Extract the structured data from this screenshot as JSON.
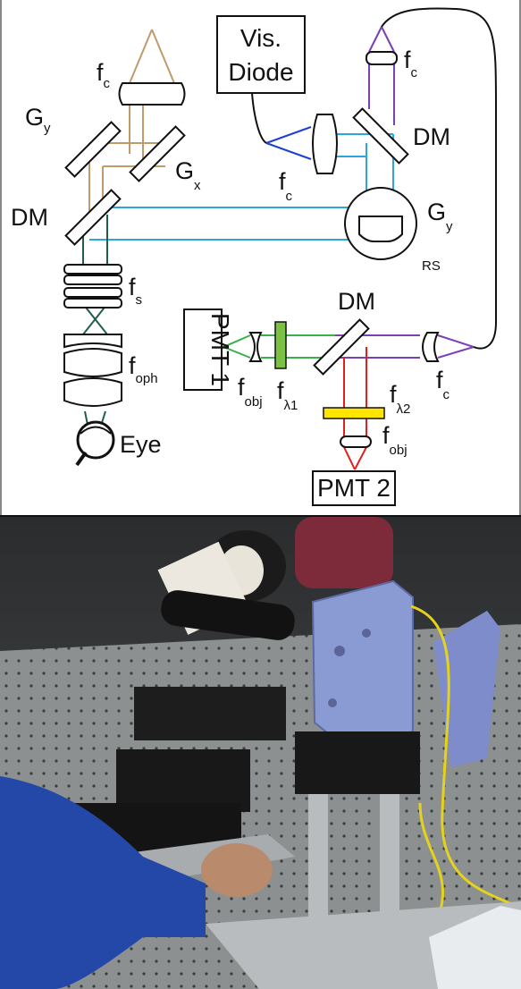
{
  "figure": {
    "diagram": {
      "labels": {
        "vis_diode_line1": "Vis.",
        "vis_diode_line2": "Diode",
        "pmt1": "PMT 1",
        "pmt2": "PMT 2",
        "eye": "Eye",
        "rs": "RS",
        "f": "f",
        "G": "G",
        "DM": "DM",
        "sub_c": "c",
        "sub_x": "x",
        "sub_y": "y",
        "sub_s": "s",
        "sub_oph": "oph",
        "sub_obj": "obj",
        "sub_l1": "λ1",
        "sub_l2": "λ2"
      },
      "beam_colors": {
        "tan": "#c19a6b",
        "cyan": "#2aa7dd",
        "blue": "#1f3fd6",
        "purple": "#7b3fb6",
        "green": "#38b24a",
        "dark_green": "#1f5e4a",
        "red": "#e0201f",
        "filter_green": "#7cc242",
        "filter_yellow": "#ffe600"
      }
    },
    "photo": {
      "description_hidden": ""
    }
  }
}
